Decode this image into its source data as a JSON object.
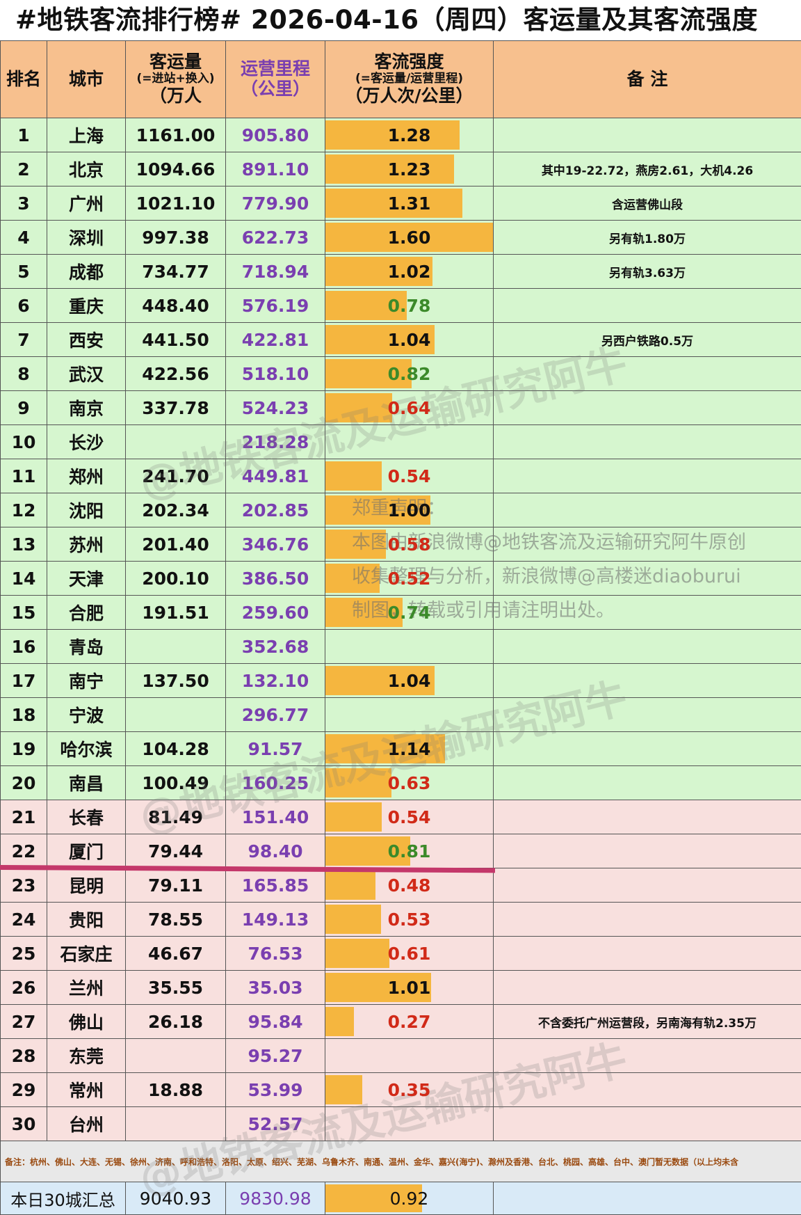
{
  "title": "#地铁客流排行榜# 2026-04-16（周四）客运量及其客流强度",
  "header": {
    "rank": "排名",
    "city": "城市",
    "ridership": "客运量",
    "ridership_sub": "(=进站+换入)",
    "ridership_unit": "（万人",
    "mileage": "运营里程",
    "mileage_unit": "（公里）",
    "intensity": "客流强度",
    "intensity_sub": "(=客运量/运营里程)",
    "intensity_unit": "（万人次/公里）",
    "notes": "备 注"
  },
  "rows": [
    {
      "rank": "1",
      "city": "上海",
      "ridership": "1161.00",
      "mileage": "905.80",
      "intensity": "1.28",
      "value": 1.28,
      "note": ""
    },
    {
      "rank": "2",
      "city": "北京",
      "ridership": "1094.66",
      "mileage": "891.10",
      "intensity": "1.23",
      "value": 1.23,
      "note": "其中19-22.72，燕房2.61，大机4.26"
    },
    {
      "rank": "3",
      "city": "广州",
      "ridership": "1021.10",
      "mileage": "779.90",
      "intensity": "1.31",
      "value": 1.31,
      "note": "含运营佛山段"
    },
    {
      "rank": "4",
      "city": "深圳",
      "ridership": "997.38",
      "mileage": "622.73",
      "intensity": "1.60",
      "value": 1.6,
      "note": "另有轨1.80万"
    },
    {
      "rank": "5",
      "city": "成都",
      "ridership": "734.77",
      "mileage": "718.94",
      "intensity": "1.02",
      "value": 1.02,
      "note": "另有轨3.63万"
    },
    {
      "rank": "6",
      "city": "重庆",
      "ridership": "448.40",
      "mileage": "576.19",
      "intensity": "0.78",
      "value": 0.78,
      "note": ""
    },
    {
      "rank": "7",
      "city": "西安",
      "ridership": "441.50",
      "mileage": "422.81",
      "intensity": "1.04",
      "value": 1.04,
      "note": "另西户铁路0.5万"
    },
    {
      "rank": "8",
      "city": "武汉",
      "ridership": "422.56",
      "mileage": "518.10",
      "intensity": "0.82",
      "value": 0.82,
      "note": ""
    },
    {
      "rank": "9",
      "city": "南京",
      "ridership": "337.78",
      "mileage": "524.23",
      "intensity": "0.64",
      "value": 0.64,
      "note": ""
    },
    {
      "rank": "10",
      "city": "长沙",
      "ridership": "",
      "mileage": "218.28",
      "intensity": "",
      "value": 0,
      "note": ""
    },
    {
      "rank": "11",
      "city": "郑州",
      "ridership": "241.70",
      "mileage": "449.81",
      "intensity": "0.54",
      "value": 0.54,
      "note": ""
    },
    {
      "rank": "12",
      "city": "沈阳",
      "ridership": "202.34",
      "mileage": "202.85",
      "intensity": "1.00",
      "value": 1.0,
      "note": ""
    },
    {
      "rank": "13",
      "city": "苏州",
      "ridership": "201.40",
      "mileage": "346.76",
      "intensity": "0.58",
      "value": 0.58,
      "note": ""
    },
    {
      "rank": "14",
      "city": "天津",
      "ridership": "200.10",
      "mileage": "386.50",
      "intensity": "0.52",
      "value": 0.52,
      "note": ""
    },
    {
      "rank": "15",
      "city": "合肥",
      "ridership": "191.51",
      "mileage": "259.60",
      "intensity": "0.74",
      "value": 0.74,
      "note": ""
    },
    {
      "rank": "16",
      "city": "青岛",
      "ridership": "",
      "mileage": "352.68",
      "intensity": "",
      "value": 0,
      "note": ""
    },
    {
      "rank": "17",
      "city": "南宁",
      "ridership": "137.50",
      "mileage": "132.10",
      "intensity": "1.04",
      "value": 1.04,
      "note": ""
    },
    {
      "rank": "18",
      "city": "宁波",
      "ridership": "",
      "mileage": "296.77",
      "intensity": "",
      "value": 0,
      "note": ""
    },
    {
      "rank": "19",
      "city": "哈尔滨",
      "ridership": "104.28",
      "mileage": "91.57",
      "intensity": "1.14",
      "value": 1.14,
      "note": ""
    },
    {
      "rank": "20",
      "city": "南昌",
      "ridership": "100.49",
      "mileage": "160.25",
      "intensity": "0.63",
      "value": 0.63,
      "note": ""
    },
    {
      "rank": "21",
      "city": "长春",
      "ridership": "81.49",
      "mileage": "151.40",
      "intensity": "0.54",
      "value": 0.54,
      "note": ""
    },
    {
      "rank": "22",
      "city": "厦门",
      "ridership": "79.44",
      "mileage": "98.40",
      "intensity": "0.81",
      "value": 0.81,
      "note": ""
    },
    {
      "rank": "23",
      "city": "昆明",
      "ridership": "79.11",
      "mileage": "165.85",
      "intensity": "0.48",
      "value": 0.48,
      "note": ""
    },
    {
      "rank": "24",
      "city": "贵阳",
      "ridership": "78.55",
      "mileage": "149.13",
      "intensity": "0.53",
      "value": 0.53,
      "note": ""
    },
    {
      "rank": "25",
      "city": "石家庄",
      "ridership": "46.67",
      "mileage": "76.53",
      "intensity": "0.61",
      "value": 0.61,
      "note": ""
    },
    {
      "rank": "26",
      "city": "兰州",
      "ridership": "35.55",
      "mileage": "35.03",
      "intensity": "1.01",
      "value": 1.01,
      "note": ""
    },
    {
      "rank": "27",
      "city": "佛山",
      "ridership": "26.18",
      "mileage": "95.84",
      "intensity": "0.27",
      "value": 0.27,
      "note": "不含委托广州运营段，另南海有轨2.35万"
    },
    {
      "rank": "28",
      "city": "东莞",
      "ridership": "",
      "mileage": "95.27",
      "intensity": "",
      "value": 0,
      "note": ""
    },
    {
      "rank": "29",
      "city": "常州",
      "ridership": "18.88",
      "mileage": "53.99",
      "intensity": "0.35",
      "value": 0.35,
      "note": ""
    },
    {
      "rank": "30",
      "city": "台州",
      "ridership": "",
      "mileage": "52.57",
      "intensity": "",
      "value": 0,
      "note": ""
    }
  ],
  "footnote": "备注：杭州、佛山、大连、无锡、徐州、济南、呼和浩特、洛阳、太原、绍兴、芜湖、乌鲁木齐、南通、温州、金华、嘉兴(海宁)、滁州及香港、台北、桃园、高雄、台中、澳门暂无数据（以上均未含",
  "total": {
    "label": "本日30城汇总",
    "ridership": "9040.93",
    "mileage": "9830.98",
    "intensity": "0.92",
    "value": 0.92
  },
  "credit": {
    "line1": "郑重声明：",
    "line2": "本图由新浪微博@地铁客流及运输研究阿牛原创",
    "line3": "收集整理与分析，新浪微博@高楼迷diaoburui",
    "line4": "制图，转载或引用请注明出处。"
  },
  "watermark": "@地铁客流及运输研究阿牛",
  "colors": {
    "header_bg": "#f7c08e",
    "top20_bg": "#d6f6cf",
    "rest_bg": "#f8e0de",
    "bar": "#f5b63f",
    "mileage_text": "#7a3fb0",
    "intensity_high": "#111111",
    "intensity_mid": "#3c8a2a",
    "intensity_low": "#d12a18",
    "cut_line": "#c4386a"
  }
}
